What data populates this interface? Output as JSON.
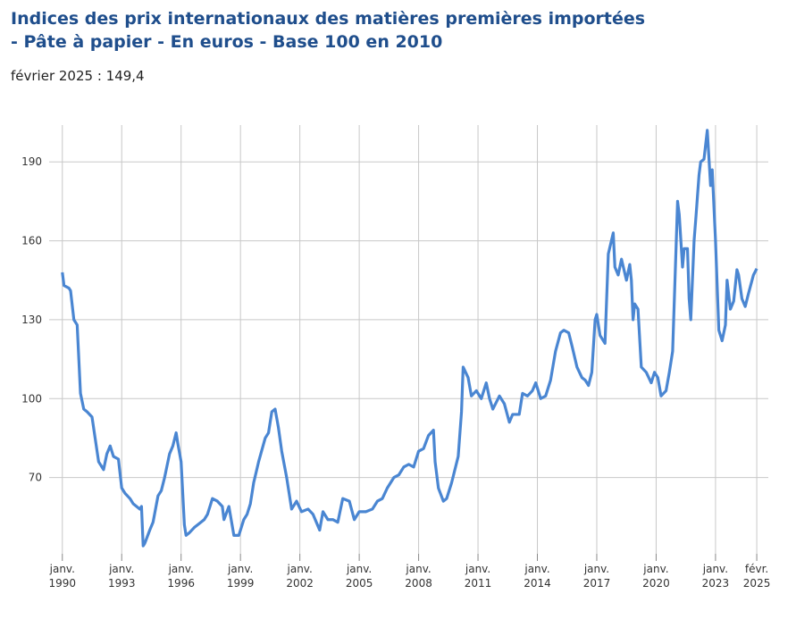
{
  "chart_data": {
    "type": "line",
    "title": "Indices des prix internationaux des matières premières importées - Pâte à papier - En euros - Base 100 en 2010",
    "subtitle": "février 2025 : 149,4",
    "x": [
      "1990-01",
      "1990-02",
      "1990-05",
      "1990-06",
      "1990-08",
      "1990-10",
      "1990-12",
      "1991-02",
      "1991-04",
      "1991-07",
      "1991-11",
      "1992-02",
      "1992-04",
      "1992-06",
      "1992-08",
      "1992-11",
      "1993-01",
      "1993-03",
      "1993-06",
      "1993-08",
      "1993-12",
      "1994-01",
      "1994-02",
      "1994-03",
      "1994-06",
      "1994-08",
      "1994-11",
      "1995-01",
      "1995-03",
      "1995-06",
      "1995-08",
      "1995-10",
      "1995-11",
      "1996-01",
      "1996-03",
      "1996-04",
      "1996-06",
      "1996-09",
      "1996-11",
      "1997-03",
      "1997-05",
      "1997-08",
      "1997-11",
      "1998-02",
      "1998-03",
      "1998-06",
      "1998-09",
      "1998-12",
      "1999-03",
      "1999-05",
      "1999-07",
      "1999-09",
      "1999-12",
      "2000-04",
      "2000-06",
      "2000-08",
      "2000-10",
      "2000-12",
      "2001-02",
      "2001-05",
      "2001-08",
      "2001-11",
      "2002-02",
      "2002-06",
      "2002-09",
      "2003-01",
      "2003-03",
      "2003-06",
      "2003-09",
      "2003-12",
      "2004-03",
      "2004-07",
      "2004-10",
      "2005-01",
      "2005-05",
      "2005-09",
      "2005-12",
      "2006-03",
      "2006-06",
      "2006-10",
      "2007-01",
      "2007-04",
      "2007-07",
      "2007-10",
      "2008-01",
      "2008-04",
      "2008-07",
      "2008-10",
      "2008-11",
      "2009-01",
      "2009-04",
      "2009-06",
      "2009-09",
      "2010-01",
      "2010-03",
      "2010-04",
      "2010-07",
      "2010-09",
      "2010-12",
      "2011-03",
      "2011-06",
      "2011-08",
      "2011-10",
      "2012-02",
      "2012-05",
      "2012-08",
      "2012-10",
      "2013-02",
      "2013-04",
      "2013-07",
      "2013-10",
      "2013-12",
      "2014-03",
      "2014-06",
      "2014-09",
      "2014-12",
      "2015-03",
      "2015-05",
      "2015-08",
      "2015-10",
      "2016-01",
      "2016-04",
      "2016-06",
      "2016-08",
      "2016-10",
      "2016-12",
      "2017-01",
      "2017-03",
      "2017-06",
      "2017-08",
      "2017-11",
      "2017-12",
      "2018-02",
      "2018-04",
      "2018-07",
      "2018-09",
      "2018-10",
      "2018-11",
      "2018-12",
      "2019-02",
      "2019-04",
      "2019-07",
      "2019-10",
      "2019-12",
      "2020-02",
      "2020-04",
      "2020-07",
      "2020-09",
      "2020-11",
      "2021-02",
      "2021-03",
      "2021-05",
      "2021-06",
      "2021-08",
      "2021-09",
      "2021-10",
      "2021-12",
      "2022-01",
      "2022-03",
      "2022-04",
      "2022-06",
      "2022-08",
      "2022-10",
      "2022-11",
      "2023-01",
      "2023-03",
      "2023-05",
      "2023-07",
      "2023-08",
      "2023-10",
      "2023-12",
      "2024-02",
      "2024-03",
      "2024-05",
      "2024-07",
      "2024-09",
      "2024-12",
      "2025-02"
    ],
    "series": [
      {
        "color": "#4a86d2",
        "values": [
          148,
          143,
          142,
          141,
          130,
          128,
          102,
          96,
          95,
          93,
          76,
          73,
          79,
          82,
          78,
          77,
          66,
          64,
          62,
          60,
          58,
          59,
          44,
          45,
          50,
          53,
          63,
          65,
          70,
          79,
          82,
          87,
          83,
          76,
          52,
          48,
          49,
          51,
          52,
          54,
          56,
          62,
          61,
          59,
          54,
          59,
          48,
          48,
          54,
          56,
          60,
          68,
          76,
          85,
          87,
          95,
          96,
          89,
          80,
          70,
          58,
          61,
          57,
          58,
          56,
          50,
          57,
          54,
          54,
          53,
          62,
          61,
          54,
          57,
          57,
          58,
          61,
          62,
          66,
          70,
          71,
          74,
          75,
          74,
          80,
          81,
          86,
          88,
          76,
          66,
          61,
          62,
          68,
          78,
          95,
          112,
          108,
          101,
          103,
          100,
          106,
          100,
          96,
          101,
          98,
          91,
          94,
          94,
          102,
          101,
          103,
          106,
          100,
          101,
          107,
          118,
          125,
          126,
          125,
          120,
          112,
          108,
          107,
          105,
          110,
          130,
          132,
          124,
          121,
          155,
          163,
          150,
          147,
          153,
          145,
          151,
          145,
          130,
          136,
          134,
          112,
          110,
          106,
          110,
          108,
          101,
          103,
          110,
          118,
          175,
          170,
          150,
          157,
          157,
          138,
          130,
          160,
          168,
          185,
          190,
          191,
          202,
          181,
          187,
          160,
          126,
          122,
          128,
          145,
          134,
          137,
          149,
          147,
          138,
          135,
          140,
          147,
          149.4
        ]
      }
    ],
    "xlim": [
      "1989-05",
      "2025-09"
    ],
    "xticks": [
      {
        "value": "1990-01",
        "label": "janv. 1990"
      },
      {
        "value": "1993-01",
        "label": "janv. 1993"
      },
      {
        "value": "1996-01",
        "label": "janv. 1996"
      },
      {
        "value": "1999-01",
        "label": "janv. 1999"
      },
      {
        "value": "2002-01",
        "label": "janv. 2002"
      },
      {
        "value": "2005-01",
        "label": "janv. 2005"
      },
      {
        "value": "2008-01",
        "label": "janv. 2008"
      },
      {
        "value": "2011-01",
        "label": "janv. 2011"
      },
      {
        "value": "2014-01",
        "label": "janv. 2014"
      },
      {
        "value": "2017-01",
        "label": "janv. 2017"
      },
      {
        "value": "2020-01",
        "label": "janv. 2020"
      },
      {
        "value": "2023-01",
        "label": "janv. 2023"
      },
      {
        "value": "2025-02",
        "label": "févr. 2025"
      }
    ],
    "ylim": [
      41,
      204
    ],
    "yticks": [
      70,
      100,
      130,
      160,
      190
    ],
    "grid": true
  }
}
